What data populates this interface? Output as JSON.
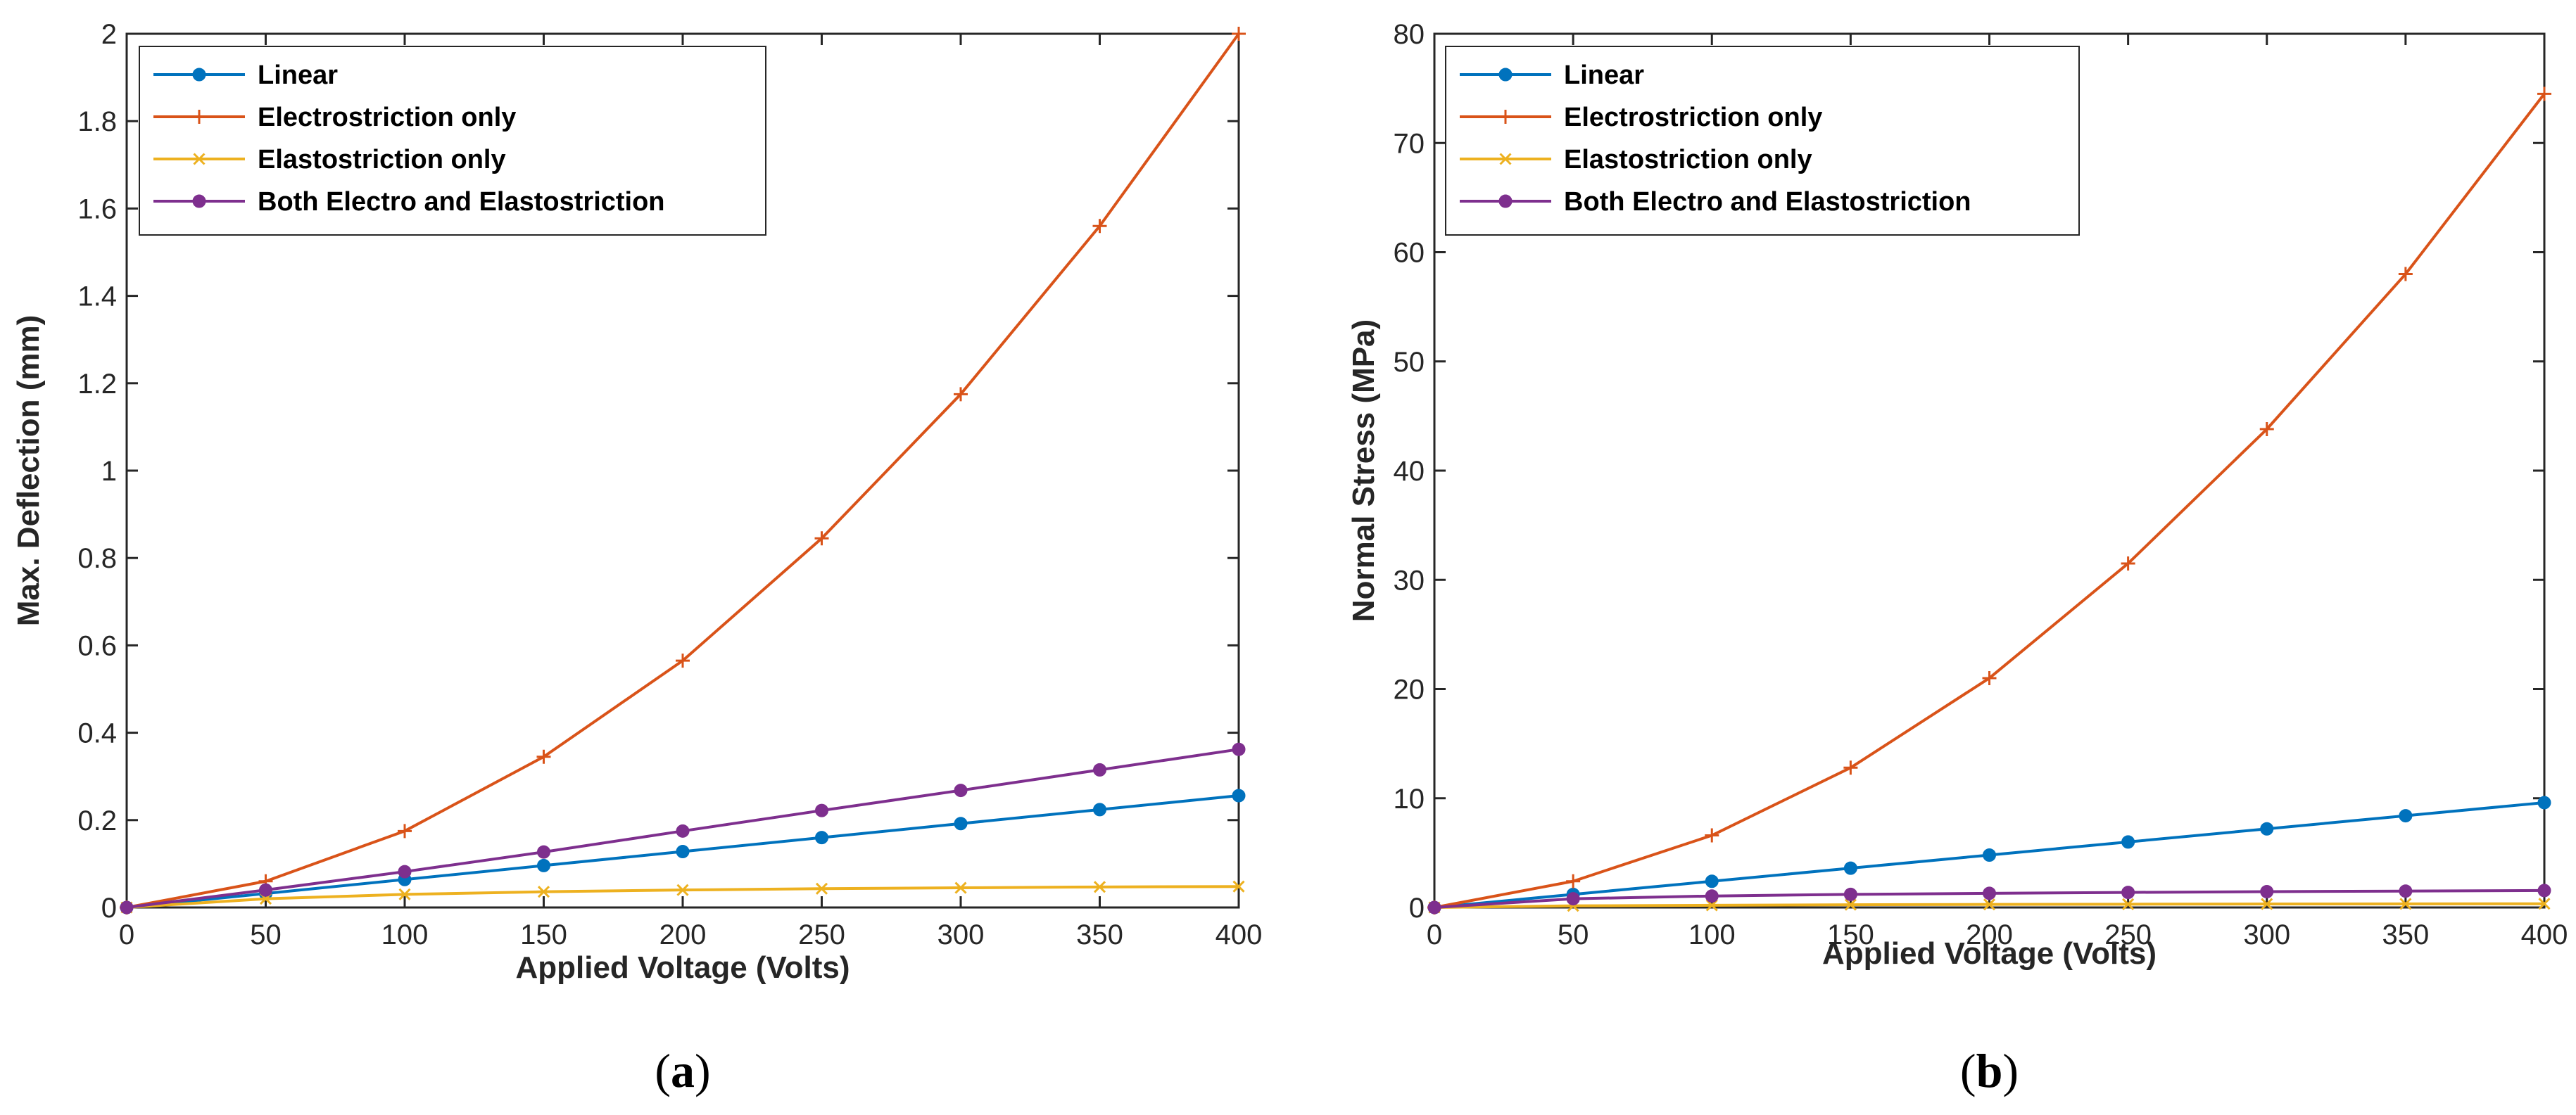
{
  "chart_data": [
    {
      "type": "line",
      "panel_label": {
        "open": "(",
        "letter": "a",
        "close": ")"
      },
      "xlabel": "Applied Voltage (Volts)",
      "ylabel": "Max. Deflection (mm)",
      "xlim": [
        0,
        400
      ],
      "ylim": [
        0,
        2
      ],
      "xticks": [
        0,
        50,
        100,
        150,
        200,
        250,
        300,
        350,
        400
      ],
      "yticks": [
        0,
        0.2,
        0.4,
        0.6,
        0.8,
        1,
        1.2,
        1.4,
        1.6,
        1.8,
        2
      ],
      "yticklabels": [
        "0",
        "0.2",
        "0.4",
        "0.6",
        "0.8",
        "1",
        "1.2",
        "1.4",
        "1.6",
        "1.8",
        "2"
      ],
      "grid": false,
      "legend_position": "top-left",
      "x": [
        0,
        50,
        100,
        150,
        200,
        250,
        300,
        350,
        400
      ],
      "series": [
        {
          "name": "Linear",
          "color": "#0072BD",
          "marker": "dot",
          "values": [
            0,
            0.032,
            0.064,
            0.096,
            0.128,
            0.16,
            0.192,
            0.224,
            0.256
          ]
        },
        {
          "name": "Electrostriction only",
          "color": "#D95319",
          "marker": "plus",
          "values": [
            0,
            0.06,
            0.175,
            0.345,
            0.565,
            0.845,
            1.175,
            1.56,
            2.0
          ]
        },
        {
          "name": "Elastostriction only",
          "color": "#EDB120",
          "marker": "x",
          "values": [
            0,
            0.02,
            0.03,
            0.036,
            0.04,
            0.043,
            0.045,
            0.047,
            0.048
          ]
        },
        {
          "name": "Both Electro and Elastostriction",
          "color": "#7E2F8E",
          "marker": "dot",
          "values": [
            0,
            0.04,
            0.082,
            0.127,
            0.175,
            0.222,
            0.268,
            0.315,
            0.362
          ]
        }
      ]
    },
    {
      "type": "line",
      "panel_label": {
        "open": "(",
        "letter": "b",
        "close": ")"
      },
      "xlabel": "Applied Voltage (Volts)",
      "ylabel": "Normal Stress (MPa)",
      "xlim": [
        0,
        400
      ],
      "ylim": [
        0,
        80
      ],
      "xticks": [
        0,
        50,
        100,
        150,
        200,
        250,
        300,
        350,
        400
      ],
      "yticks": [
        0,
        10,
        20,
        30,
        40,
        50,
        60,
        70,
        80
      ],
      "yticklabels": [
        "0",
        "10",
        "20",
        "30",
        "40",
        "50",
        "60",
        "70",
        "80"
      ],
      "grid": false,
      "legend_position": "top-left",
      "x": [
        0,
        50,
        100,
        150,
        200,
        250,
        300,
        350,
        400
      ],
      "series": [
        {
          "name": "Linear",
          "color": "#0072BD",
          "marker": "dot",
          "values": [
            0,
            1.2,
            2.4,
            3.6,
            4.8,
            6.0,
            7.2,
            8.4,
            9.6
          ]
        },
        {
          "name": "Electrostriction only",
          "color": "#D95319",
          "marker": "plus",
          "values": [
            0,
            2.4,
            6.6,
            12.8,
            21.0,
            31.5,
            43.8,
            58.0,
            74.5
          ]
        },
        {
          "name": "Elastostriction only",
          "color": "#EDB120",
          "marker": "x",
          "values": [
            0,
            0.15,
            0.2,
            0.25,
            0.28,
            0.3,
            0.32,
            0.33,
            0.34
          ]
        },
        {
          "name": "Both Electro and Elastostriction",
          "color": "#7E2F8E",
          "marker": "dot",
          "values": [
            0,
            0.8,
            1.05,
            1.2,
            1.3,
            1.38,
            1.45,
            1.5,
            1.55
          ]
        }
      ]
    }
  ]
}
